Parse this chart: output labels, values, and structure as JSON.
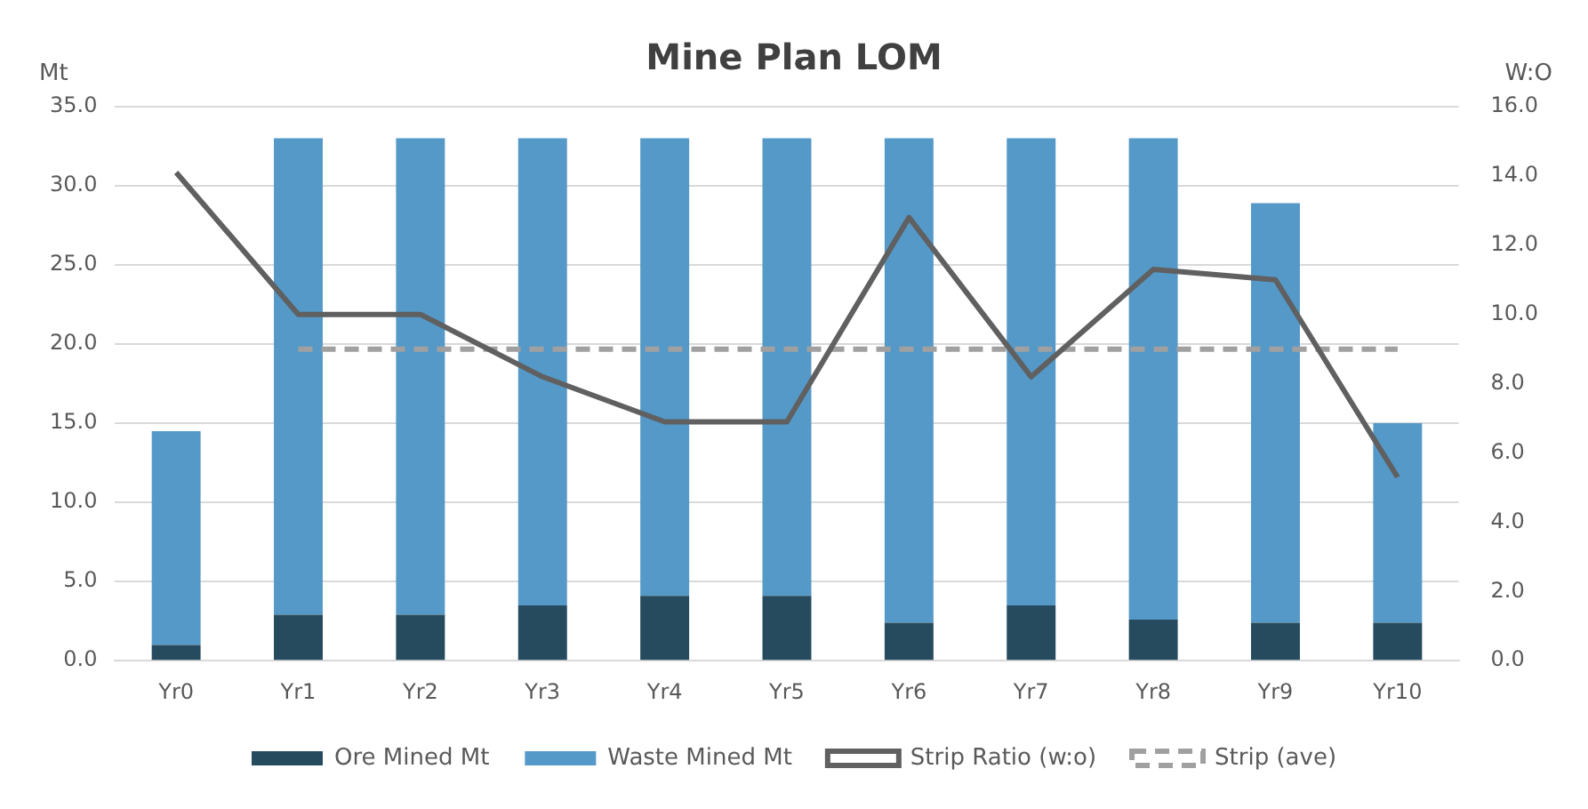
{
  "chart_data": {
    "type": "bar",
    "title": "Mine Plan LOM",
    "ylabel": "Mt",
    "y2label": "W:O",
    "categories": [
      "Yr0",
      "Yr1",
      "Yr2",
      "Yr3",
      "Yr4",
      "Yr5",
      "Yr6",
      "Yr7",
      "Yr8",
      "Yr9",
      "Yr10"
    ],
    "stacked": true,
    "series": [
      {
        "name": "Ore Mined Mt",
        "color": "#264a5e",
        "values": [
          1.0,
          2.9,
          2.9,
          3.5,
          4.1,
          4.1,
          2.4,
          3.5,
          2.6,
          2.4,
          2.4
        ]
      },
      {
        "name": "Waste Mined Mt",
        "color": "#5599c8",
        "values": [
          13.5,
          30.1,
          30.1,
          29.5,
          28.9,
          28.9,
          30.6,
          29.5,
          30.4,
          26.5,
          12.6
        ]
      },
      {
        "name": "Strip Ratio (w:o)",
        "type": "line",
        "axis": "y2",
        "color": "#606060",
        "line_style": "solid",
        "values": [
          14.1,
          10.0,
          10.0,
          8.2,
          6.9,
          6.9,
          12.8,
          8.2,
          11.3,
          11.0,
          5.3
        ]
      },
      {
        "name": "Strip (ave)",
        "type": "line",
        "axis": "y2",
        "color": "#a0a0a0",
        "line_style": "dashed",
        "values": [
          null,
          9.0,
          9.0,
          9.0,
          9.0,
          9.0,
          9.0,
          9.0,
          9.0,
          9.0,
          9.0
        ]
      }
    ],
    "ylim": [
      0,
      35
    ],
    "yticks": [
      {
        "value": 0,
        "label": "0.0"
      },
      {
        "value": 5,
        "label": "5.0"
      },
      {
        "value": 10,
        "label": "10.0"
      },
      {
        "value": 15,
        "label": "15.0"
      },
      {
        "value": 20,
        "label": "20.0"
      },
      {
        "value": 25,
        "label": "25.0"
      },
      {
        "value": 30,
        "label": "30.0"
      },
      {
        "value": 35,
        "label": "35.0"
      }
    ],
    "y2lim": [
      0,
      16
    ],
    "y2ticks": [
      {
        "value": 0,
        "label": "0.0"
      },
      {
        "value": 2,
        "label": "2.0"
      },
      {
        "value": 4,
        "label": "4.0"
      },
      {
        "value": 6,
        "label": "6.0"
      },
      {
        "value": 8,
        "label": "8.0"
      },
      {
        "value": 10,
        "label": "10.0"
      },
      {
        "value": 12,
        "label": "12.0"
      },
      {
        "value": 14,
        "label": "14.0"
      },
      {
        "value": 16,
        "label": "16.0"
      }
    ],
    "grid": "y",
    "legend": "bottom",
    "marker": "none"
  }
}
